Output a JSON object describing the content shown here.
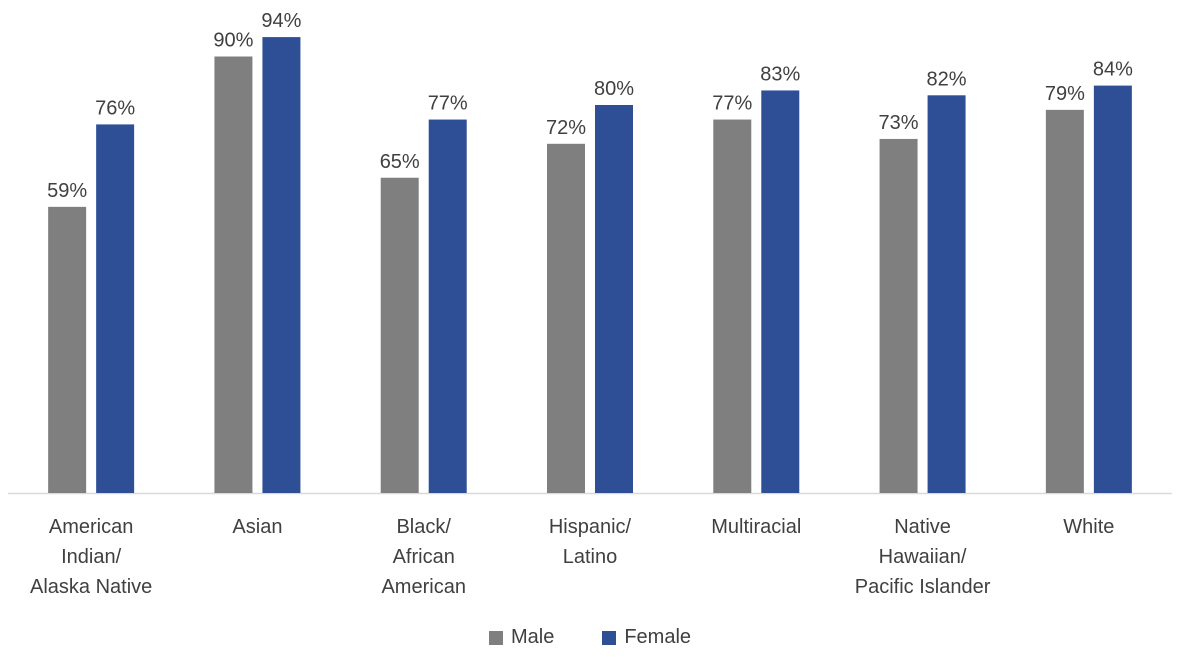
{
  "chart_data": {
    "type": "bar",
    "categories": [
      [
        "American",
        "Indian/",
        "Alaska Native"
      ],
      [
        "Asian"
      ],
      [
        "Black/",
        "African",
        "American"
      ],
      [
        "Hispanic/",
        "Latino"
      ],
      [
        "Multiracial"
      ],
      [
        "Native",
        "Hawaiian/",
        "Pacific Islander"
      ],
      [
        "White"
      ]
    ],
    "series": [
      {
        "name": "Male",
        "color": "#7f7f7f",
        "values": [
          59,
          90,
          65,
          72,
          77,
          73,
          79
        ],
        "labels": [
          "59%",
          "90%",
          "65%",
          "72%",
          "77%",
          "73%",
          "79%"
        ]
      },
      {
        "name": "Female",
        "color": "#2e4f96",
        "values": [
          76,
          94,
          77,
          80,
          83,
          82,
          84
        ],
        "labels": [
          "76%",
          "94%",
          "77%",
          "80%",
          "83%",
          "82%",
          "84%"
        ]
      }
    ],
    "ylim": [
      0,
      100
    ],
    "grid": false,
    "legend_position": "bottom",
    "axis_color": "#d9d9d9"
  },
  "legend": {
    "male_label": "Male",
    "female_label": "Female"
  }
}
